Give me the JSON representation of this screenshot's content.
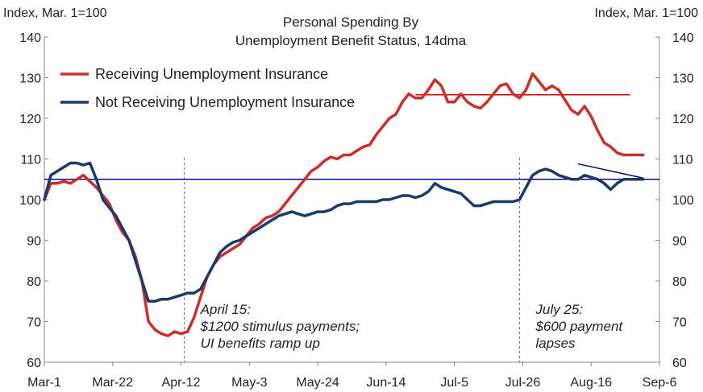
{
  "chart_data": {
    "type": "line",
    "title_lines": [
      "Personal Spending By",
      "Unemployment Benefit Status, 14dma"
    ],
    "left_unit_label": "Index, Mar. 1=100",
    "right_unit_label": "Index, Mar. 1=100",
    "ylim": [
      60,
      140
    ],
    "yticks": [
      60,
      70,
      80,
      90,
      100,
      110,
      120,
      130,
      140
    ],
    "ytick_labels": [
      "60",
      "70",
      "80",
      "90",
      "100",
      "110",
      "120",
      "130",
      "140"
    ],
    "xlim": [
      0,
      189
    ],
    "xticks": [
      0,
      21,
      42,
      63,
      84,
      105,
      126,
      147,
      168,
      189
    ],
    "xtick_labels": [
      "Mar-1",
      "Mar-22",
      "Apr-12",
      "May-3",
      "May-24",
      "Jun-14",
      "Jul-5",
      "Jul-26",
      "Aug-16",
      "Sep-6"
    ],
    "series": [
      {
        "name": "Receiving Unemployment Insurance",
        "color": "#c9302c",
        "x": [
          0,
          2,
          4,
          6,
          8,
          10,
          12,
          14,
          16,
          18,
          20,
          22,
          24,
          26,
          28,
          30,
          32,
          34,
          36,
          38,
          40,
          42,
          44,
          46,
          48,
          50,
          52,
          54,
          56,
          58,
          60,
          62,
          64,
          66,
          68,
          70,
          72,
          74,
          76,
          78,
          80,
          82,
          84,
          86,
          88,
          90,
          92,
          94,
          96,
          98,
          100,
          102,
          104,
          106,
          108,
          110,
          112,
          114,
          116,
          118,
          120,
          122,
          124,
          126,
          128,
          130,
          132,
          134,
          136,
          138,
          140,
          142,
          144,
          146,
          148,
          150,
          152,
          154,
          156,
          158,
          160,
          162,
          164,
          166,
          168,
          170,
          172,
          174,
          176,
          178,
          180,
          182,
          184
        ],
        "y": [
          100,
          104,
          104,
          104.5,
          104,
          105,
          106,
          104.5,
          103,
          101,
          99,
          95,
          92,
          90,
          86,
          80,
          70,
          68,
          67,
          66.5,
          67.5,
          67,
          67.5,
          71,
          76,
          81,
          84,
          86,
          87,
          88,
          89,
          91,
          93,
          94,
          95.5,
          96,
          97,
          99,
          101,
          103,
          105,
          107,
          108,
          109.5,
          110.5,
          110,
          111,
          111,
          112,
          113,
          113.5,
          116,
          118,
          120,
          121,
          124,
          126,
          125,
          125,
          127,
          129.5,
          128,
          124,
          124,
          126,
          124,
          123,
          122.5,
          124,
          126,
          128,
          128.5,
          126,
          125,
          127,
          131,
          129,
          127,
          128,
          127,
          124.5,
          122,
          121,
          123,
          120.5,
          117,
          114,
          113,
          111.5,
          111,
          111,
          111,
          111
        ]
      },
      {
        "name": "Not Receiving Unemployment Insurance",
        "color": "#1a3a6b",
        "x": [
          0,
          2,
          4,
          6,
          8,
          10,
          12,
          14,
          16,
          18,
          20,
          22,
          24,
          26,
          28,
          30,
          32,
          34,
          36,
          38,
          40,
          42,
          44,
          46,
          48,
          50,
          52,
          54,
          56,
          58,
          60,
          62,
          64,
          66,
          68,
          70,
          72,
          74,
          76,
          78,
          80,
          82,
          84,
          86,
          88,
          90,
          92,
          94,
          96,
          98,
          100,
          102,
          104,
          106,
          108,
          110,
          112,
          114,
          116,
          118,
          120,
          122,
          124,
          126,
          128,
          130,
          132,
          134,
          136,
          138,
          140,
          142,
          144,
          146,
          148,
          150,
          152,
          154,
          156,
          158,
          160,
          162,
          164,
          166,
          168,
          170,
          172,
          174,
          176,
          178,
          180,
          182,
          184
        ],
        "y": [
          100,
          106,
          107,
          108,
          109,
          109,
          108.5,
          109,
          105,
          100,
          98,
          96,
          93,
          90,
          85,
          80,
          75,
          75,
          75.5,
          75.5,
          76,
          76.5,
          77,
          77,
          78,
          81,
          84,
          87,
          88.5,
          89.5,
          90,
          91,
          92,
          93,
          94,
          95,
          96,
          96.5,
          97,
          96.5,
          96,
          96.5,
          97,
          97,
          97.5,
          98.5,
          99,
          99,
          99.5,
          99.5,
          99.5,
          99.5,
          100,
          100,
          100.5,
          101,
          101,
          100.5,
          101,
          102,
          104,
          103,
          102.5,
          102,
          101.5,
          100,
          98.5,
          98.5,
          99,
          99.5,
          99.5,
          99.5,
          99.5,
          100,
          103,
          106,
          107,
          107.5,
          107,
          106,
          105.5,
          105,
          105,
          106,
          105.5,
          105,
          104,
          102.5,
          104,
          105,
          105,
          105,
          105
        ]
      }
    ],
    "reference_lines": [
      {
        "kind": "horizontal",
        "color": "#00008b",
        "y": 105,
        "x_from": 0,
        "x_to": 189
      },
      {
        "kind": "horizontal",
        "color": "#e00000",
        "y": 125.8,
        "x_from": 114,
        "x_to": 180
      },
      {
        "kind": "trend",
        "color": "#00008b",
        "x_from": 164,
        "y_from": 108.8,
        "x_to": 184,
        "y_to": 105.3
      }
    ],
    "event_markers": [
      {
        "x": 43,
        "lines": [
          "April 15:",
          "$1200 stimulus payments;",
          " UI benefits ramp up"
        ]
      },
      {
        "x": 146,
        "lines": [
          "July 25:",
          "$600 payment",
          "lapses"
        ]
      }
    ],
    "grid": false,
    "legend_position": "top-left"
  }
}
